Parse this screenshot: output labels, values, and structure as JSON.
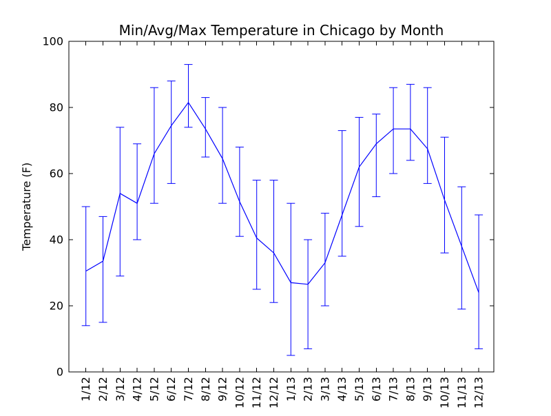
{
  "figure": {
    "background": "#ffffff",
    "axes_color": "#000000"
  },
  "chart_data": {
    "type": "line",
    "subtype": "errorbar-min-avg-max",
    "title": "Min/Avg/Max Temperature in Chicago by Month",
    "xlabel": "",
    "ylabel": "Temperature (F)",
    "ylim": [
      0,
      100
    ],
    "yticks": [
      0,
      20,
      40,
      60,
      80,
      100
    ],
    "x_tick_rotation": 90,
    "grid": false,
    "legend": "none",
    "line_color": "#0000ff",
    "categories": [
      "1/12",
      "2/12",
      "3/12",
      "4/12",
      "5/12",
      "6/12",
      "7/12",
      "8/12",
      "9/12",
      "10/12",
      "11/12",
      "12/12",
      "1/13",
      "2/13",
      "3/13",
      "4/13",
      "5/13",
      "6/13",
      "7/13",
      "8/13",
      "9/13",
      "10/13",
      "11/13",
      "12/13"
    ],
    "series": [
      {
        "name": "avg",
        "values": [
          30.5,
          33.5,
          54,
          51,
          66,
          74.5,
          81.5,
          73.5,
          64.5,
          51.5,
          40.5,
          36,
          27,
          26.5,
          33,
          47.5,
          62,
          69,
          73.5,
          73.5,
          67.5,
          52,
          38,
          24
        ]
      },
      {
        "name": "min",
        "values": [
          14,
          15,
          29,
          40,
          51,
          57,
          74,
          65,
          51,
          41,
          25,
          21,
          5,
          7,
          20,
          35,
          44,
          53,
          60,
          64,
          57,
          36,
          19,
          7
        ]
      },
      {
        "name": "max",
        "values": [
          50,
          47,
          74,
          69,
          86,
          88,
          93,
          83,
          80,
          68,
          58,
          58,
          51,
          40,
          48,
          73,
          77,
          78,
          86,
          87,
          86,
          71,
          56,
          47.5
        ]
      }
    ]
  }
}
